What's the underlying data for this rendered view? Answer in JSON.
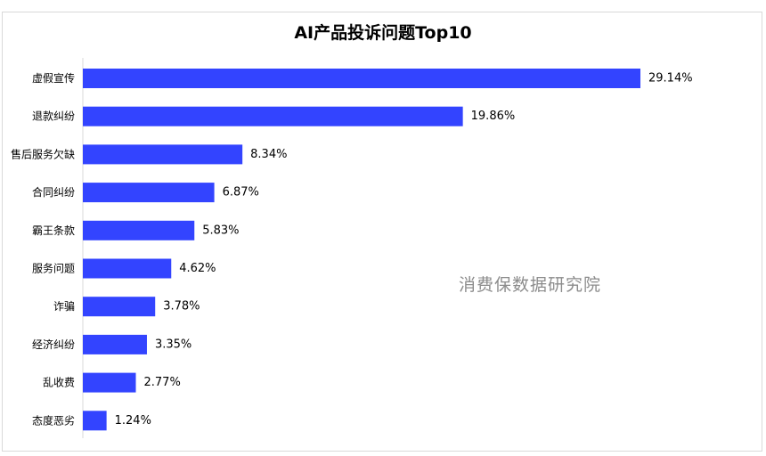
{
  "chart_data": {
    "type": "bar",
    "orientation": "horizontal",
    "title": "AI产品投诉问题Top10",
    "categories": [
      "虚假宣传",
      "退款纠纷",
      "售后服务欠缺",
      "合同纠纷",
      "霸王条款",
      "服务问题",
      "诈骗",
      "经济纠纷",
      "乱收费",
      "态度恶劣"
    ],
    "values": [
      29.14,
      19.86,
      8.34,
      6.87,
      5.83,
      4.62,
      3.78,
      3.35,
      2.77,
      1.24
    ],
    "data_labels": [
      "29.14%",
      "19.86%",
      "8.34%",
      "6.87%",
      "5.83%",
      "4.62%",
      "3.78%",
      "3.35%",
      "2.77%",
      "1.24%"
    ],
    "xlabel": "",
    "ylabel": "",
    "xlim": [
      0,
      29.14
    ],
    "grid": false,
    "legend": "none",
    "bar_color": "#3344ff"
  },
  "watermark": "消费保数据研究院"
}
